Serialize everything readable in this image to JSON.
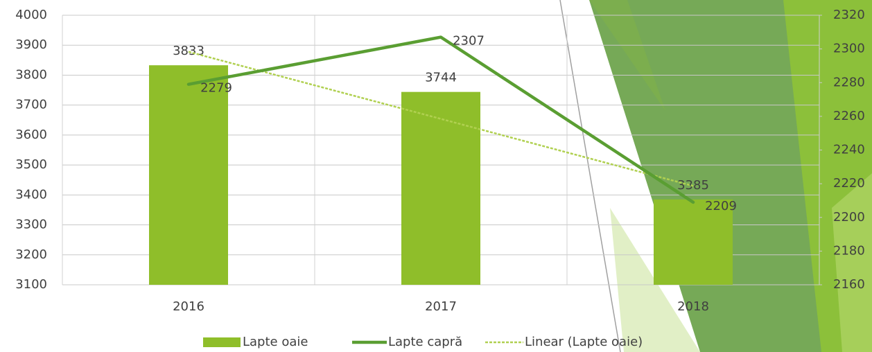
{
  "chart_data": {
    "type": "bar",
    "categories": [
      "2016",
      "2017",
      "2018"
    ],
    "series": [
      {
        "name": "Lapte oaie",
        "type": "bar",
        "color": "#8fbe2a",
        "values": [
          3833,
          3744,
          3385
        ]
      },
      {
        "name": "Lapte capră",
        "type": "line",
        "color": "#5a9e32",
        "axis": "y2",
        "values": [
          2279,
          2307,
          2209
        ]
      },
      {
        "name": "Linear (Lapte oaie)",
        "type": "trendline",
        "color": "#b0d050",
        "values": [
          3878,
          3654,
          3430
        ]
      }
    ],
    "ylim": [
      3100,
      4000
    ],
    "yticks": [
      3100,
      3200,
      3300,
      3400,
      3500,
      3600,
      3700,
      3800,
      3900,
      4000
    ],
    "y2lim": [
      2160,
      2320
    ],
    "y2ticks": [
      2160,
      2180,
      2200,
      2220,
      2240,
      2260,
      2280,
      2300,
      2320
    ],
    "grid": true,
    "legend": "bottom"
  }
}
